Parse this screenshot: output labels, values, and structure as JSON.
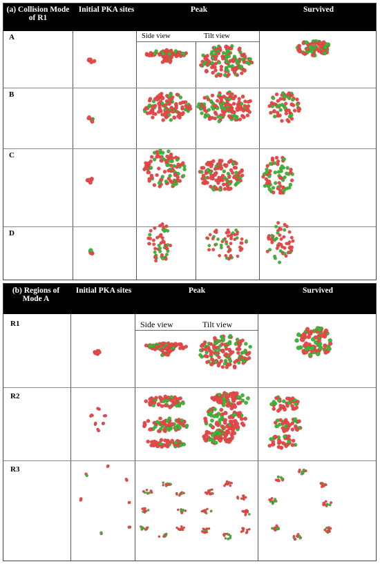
{
  "panel_a": {
    "headers": [
      "(a) Collision Mode of R1",
      "Initial PKA sites",
      "Peak",
      "Survived"
    ],
    "subheaders": [
      "Side view",
      "Tilt view"
    ],
    "rows": [
      "A",
      "B",
      "C",
      "D"
    ]
  },
  "panel_b": {
    "headers": [
      "(b) Regions of Mode A",
      "Initial PKA sites",
      "Peak",
      "Survived"
    ],
    "subheaders": [
      "Side view",
      "Tilt view"
    ],
    "rows": [
      "R1",
      "R2",
      "R3"
    ]
  },
  "colors": {
    "atom_red": "#e84a4a",
    "atom_green": "#2bc23a",
    "header_bg": "#000000"
  }
}
